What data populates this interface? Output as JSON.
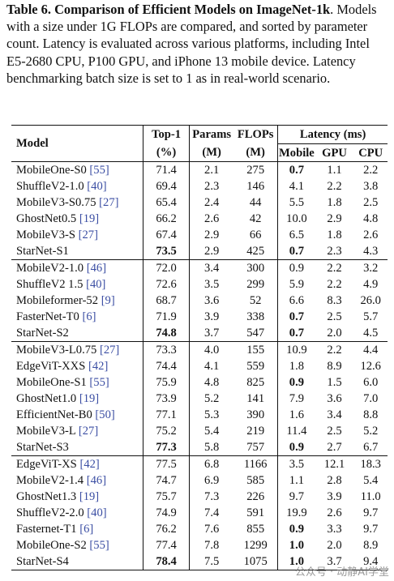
{
  "caption": {
    "label": "Table 6.",
    "title": "Comparison of Efficient Models on ImageNet-1k",
    "body": ". Models with a size under 1G FLOPs are compared, and sorted by parameter count. Latency is evaluated across various platforms, including Intel E5-2680 CPU, P100 GPU, and iPhone 13 mobile device. Latency benchmarking batch size is set to 1 as in real-world scenario."
  },
  "header": {
    "model": "Model",
    "top1": "Top-1",
    "top1_unit": "(%)",
    "params": "Params",
    "params_unit": "(M)",
    "flops": "FLOPs",
    "flops_unit": "(M)",
    "latency": "Latency (ms)",
    "mobile": "Mobile",
    "gpu": "GPU",
    "cpu": "CPU"
  },
  "groups": [
    [
      {
        "name": "MobileOne-S0",
        "ref": "[55]",
        "top1": "71.4",
        "params": "2.1",
        "flops": "275",
        "mobile": "0.7",
        "gpu": "1.1",
        "cpu": "2.2",
        "bold": [
          "mobile"
        ]
      },
      {
        "name": "ShuffleV2-1.0",
        "ref": "[40]",
        "top1": "69.4",
        "params": "2.3",
        "flops": "146",
        "mobile": "4.1",
        "gpu": "2.2",
        "cpu": "3.8",
        "bold": []
      },
      {
        "name": "MobileV3-S0.75",
        "ref": "[27]",
        "top1": "65.4",
        "params": "2.4",
        "flops": "44",
        "mobile": "5.5",
        "gpu": "1.8",
        "cpu": "2.5",
        "bold": []
      },
      {
        "name": "GhostNet0.5",
        "ref": "[19]",
        "top1": "66.2",
        "params": "2.6",
        "flops": "42",
        "mobile": "10.0",
        "gpu": "2.9",
        "cpu": "4.8",
        "bold": []
      },
      {
        "name": "MobileV3-S",
        "ref": "[27]",
        "top1": "67.4",
        "params": "2.9",
        "flops": "66",
        "mobile": "6.5",
        "gpu": "1.8",
        "cpu": "2.6",
        "bold": []
      },
      {
        "name": "StarNet-S1",
        "ref": "",
        "top1": "73.5",
        "params": "2.9",
        "flops": "425",
        "mobile": "0.7",
        "gpu": "2.3",
        "cpu": "4.3",
        "bold": [
          "top1",
          "mobile"
        ]
      }
    ],
    [
      {
        "name": "MobileV2-1.0",
        "ref": "[46]",
        "top1": "72.0",
        "params": "3.4",
        "flops": "300",
        "mobile": "0.9",
        "gpu": "2.2",
        "cpu": "3.2",
        "bold": []
      },
      {
        "name": "ShuffleV2 1.5",
        "ref": "[40]",
        "top1": "72.6",
        "params": "3.5",
        "flops": "299",
        "mobile": "5.9",
        "gpu": "2.2",
        "cpu": "4.9",
        "bold": []
      },
      {
        "name": "Mobileformer-52",
        "ref": "[9]",
        "top1": "68.7",
        "params": "3.6",
        "flops": "52",
        "mobile": "6.6",
        "gpu": "8.3",
        "cpu": "26.0",
        "bold": []
      },
      {
        "name": "FasterNet-T0",
        "ref": "[6]",
        "top1": "71.9",
        "params": "3.9",
        "flops": "338",
        "mobile": "0.7",
        "gpu": "2.5",
        "cpu": "5.7",
        "bold": [
          "mobile"
        ]
      },
      {
        "name": "StarNet-S2",
        "ref": "",
        "top1": "74.8",
        "params": "3.7",
        "flops": "547",
        "mobile": "0.7",
        "gpu": "2.0",
        "cpu": "4.5",
        "bold": [
          "top1",
          "mobile"
        ]
      }
    ],
    [
      {
        "name": "MobileV3-L0.75",
        "ref": "[27]",
        "top1": "73.3",
        "params": "4.0",
        "flops": "155",
        "mobile": "10.9",
        "gpu": "2.2",
        "cpu": "4.4",
        "bold": []
      },
      {
        "name": "EdgeViT-XXS",
        "ref": "[42]",
        "top1": "74.4",
        "params": "4.1",
        "flops": "559",
        "mobile": "1.8",
        "gpu": "8.9",
        "cpu": "12.6",
        "bold": []
      },
      {
        "name": "MobileOne-S1",
        "ref": "[55]",
        "top1": "75.9",
        "params": "4.8",
        "flops": "825",
        "mobile": "0.9",
        "gpu": "1.5",
        "cpu": "6.0",
        "bold": [
          "mobile"
        ]
      },
      {
        "name": "GhostNet1.0",
        "ref": "[19]",
        "top1": "73.9",
        "params": "5.2",
        "flops": "141",
        "mobile": "7.9",
        "gpu": "3.6",
        "cpu": "7.0",
        "bold": []
      },
      {
        "name": "EfficientNet-B0",
        "ref": "[50]",
        "top1": "77.1",
        "params": "5.3",
        "flops": "390",
        "mobile": "1.6",
        "gpu": "3.4",
        "cpu": "8.8",
        "bold": []
      },
      {
        "name": "MobileV3-L",
        "ref": "[27]",
        "top1": "75.2",
        "params": "5.4",
        "flops": "219",
        "mobile": "11.4",
        "gpu": "2.5",
        "cpu": "5.2",
        "bold": []
      },
      {
        "name": "StarNet-S3",
        "ref": "",
        "top1": "77.3",
        "params": "5.8",
        "flops": "757",
        "mobile": "0.9",
        "gpu": "2.7",
        "cpu": "6.7",
        "bold": [
          "top1",
          "mobile"
        ]
      }
    ],
    [
      {
        "name": "EdgeViT-XS",
        "ref": "[42]",
        "top1": "77.5",
        "params": "6.8",
        "flops": "1166",
        "mobile": "3.5",
        "gpu": "12.1",
        "cpu": "18.3",
        "bold": []
      },
      {
        "name": "MobileV2-1.4",
        "ref": "[46]",
        "top1": "74.7",
        "params": "6.9",
        "flops": "585",
        "mobile": "1.1",
        "gpu": "2.8",
        "cpu": "5.4",
        "bold": []
      },
      {
        "name": "GhostNet1.3",
        "ref": "[19]",
        "top1": "75.7",
        "params": "7.3",
        "flops": "226",
        "mobile": "9.7",
        "gpu": "3.9",
        "cpu": "11.0",
        "bold": []
      },
      {
        "name": "ShuffleV2-2.0",
        "ref": "[40]",
        "top1": "74.9",
        "params": "7.4",
        "flops": "591",
        "mobile": "19.9",
        "gpu": "2.6",
        "cpu": "9.7",
        "bold": []
      },
      {
        "name": "Fasternet-T1",
        "ref": "[6]",
        "top1": "76.2",
        "params": "7.6",
        "flops": "855",
        "mobile": "0.9",
        "gpu": "3.3",
        "cpu": "9.7",
        "bold": [
          "mobile"
        ]
      },
      {
        "name": "MobileOne-S2",
        "ref": "[55]",
        "top1": "77.4",
        "params": "7.8",
        "flops": "1299",
        "mobile": "1.0",
        "gpu": "2.0",
        "cpu": "8.9",
        "bold": [
          "mobile"
        ]
      },
      {
        "name": "StarNet-S4",
        "ref": "",
        "top1": "78.4",
        "params": "7.5",
        "flops": "1075",
        "mobile": "1.0",
        "gpu": "3.7",
        "cpu": "9.4",
        "bold": [
          "top1",
          "mobile"
        ]
      }
    ]
  ],
  "watermark": "公众号 · 动静AI学堂"
}
